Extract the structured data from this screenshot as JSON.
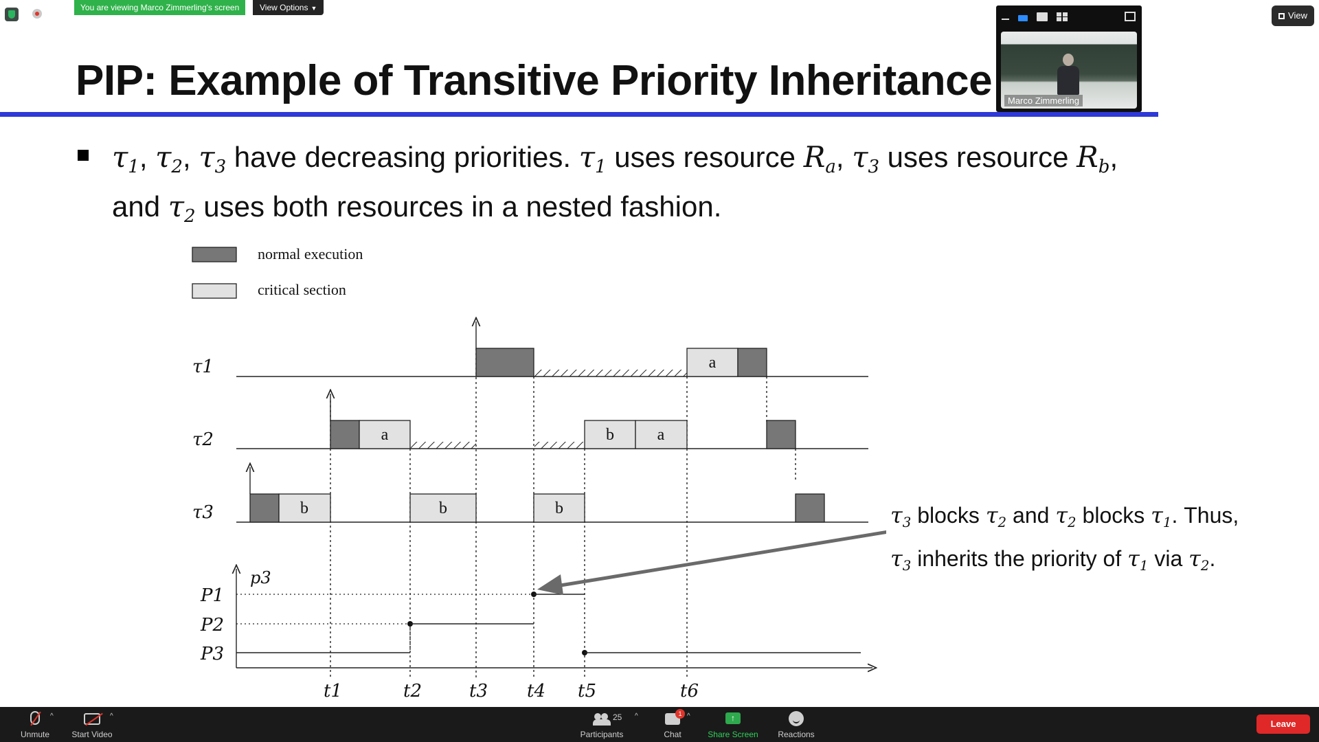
{
  "zoom_top": {
    "viewing_banner": "You are viewing Marco Zimmerling's screen",
    "view_options": "View Options",
    "view_button": "View"
  },
  "slide": {
    "title": "PIP: Example of Transitive Priority Inheritance",
    "bullet_text_plain": "τ1, τ2, τ3 have decreasing priorities. τ1 uses resource Ra, τ3 uses resource Rb, and τ2 uses both resources in a nested fashion.",
    "bullet": {
      "p1": "have decreasing priorities. ",
      "p2": " uses resource ",
      "p3": " uses resource ",
      "p4": "and ",
      "p5": " uses both resources in a nested fashion."
    },
    "annotation": {
      "line1_a": "blocks",
      "line1_b": "and",
      "line1_c": "blocks",
      "line1_d": ". Thus,",
      "line2_a": "inherits the priority of",
      "line2_b": "via",
      "line2_c": "."
    }
  },
  "diagram": {
    "legend": [
      {
        "label": "normal execution",
        "color": "#777777"
      },
      {
        "label": "critical section",
        "color": "#e2e2e2"
      }
    ],
    "tasks": [
      "τ1",
      "τ2",
      "τ3"
    ],
    "time_labels": [
      "t1",
      "t2",
      "t3",
      "t4",
      "t5",
      "t6"
    ],
    "priority_label": "p3",
    "priority_levels": [
      "P1",
      "P2",
      "P3"
    ],
    "blocks": {
      "tau1": [
        {
          "type": "normal",
          "from": "t3",
          "to": "t4"
        },
        {
          "type": "critical",
          "label": "a",
          "from": "t6"
        },
        {
          "type": "normal"
        }
      ],
      "tau2": [
        {
          "type": "normal",
          "from": "t1"
        },
        {
          "type": "critical",
          "label": "a",
          "to": "t2"
        },
        {
          "type": "critical",
          "label": "b",
          "from": "t5"
        },
        {
          "type": "critical",
          "label": "a",
          "to": "t6"
        },
        {
          "type": "normal"
        }
      ],
      "tau3": [
        {
          "type": "normal"
        },
        {
          "type": "critical",
          "label": "b",
          "to": "t1"
        },
        {
          "type": "critical",
          "label": "b",
          "from": "t2",
          "to": "t3"
        },
        {
          "type": "critical",
          "label": "b",
          "from": "t4",
          "to": "t5"
        },
        {
          "type": "normal"
        }
      ]
    },
    "block_letters": {
      "a": "a",
      "b": "b"
    }
  },
  "video": {
    "name": "Marco Zimmerling"
  },
  "controls": {
    "unmute": "Unmute",
    "start_video": "Start Video",
    "participants": "Participants",
    "participants_count": "25",
    "chat": "Chat",
    "chat_badge": "1",
    "share_screen": "Share Screen",
    "reactions": "Reactions",
    "leave": "Leave"
  },
  "colors": {
    "accent_rule": "#2e39d6",
    "banner_green": "#2fb24a",
    "leave_red": "#e02828",
    "normal_execution": "#777777",
    "critical_section": "#e2e2e2"
  }
}
